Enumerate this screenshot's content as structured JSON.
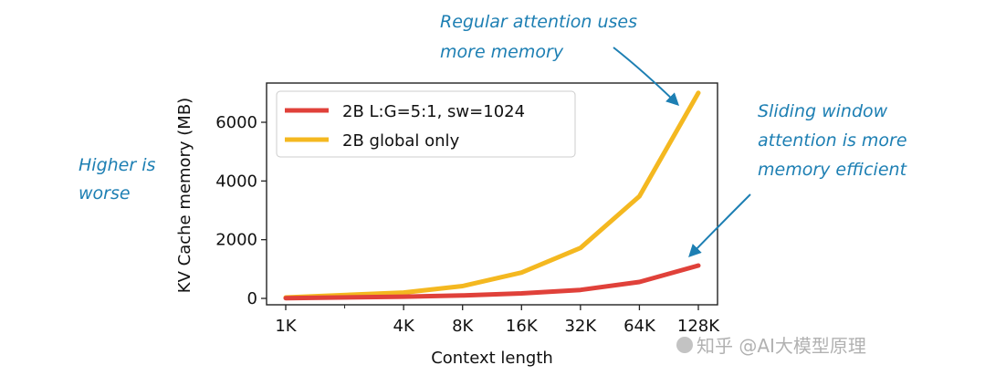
{
  "chart_data": {
    "type": "line",
    "x_scale": "log2",
    "x": [
      "1K",
      "4K",
      "8K",
      "16K",
      "32K",
      "64K",
      "128K"
    ],
    "xlabel": "Context length",
    "ylabel": "KV Cache memory (MB)",
    "y_ticks": [
      "0",
      "2000",
      "4000",
      "6000"
    ],
    "ylim": [
      -150,
      7350
    ],
    "grid": false,
    "legend_position": "top-left",
    "series": [
      {
        "name": "2B L:G=5:1, sw=1024",
        "color": "#e0413a",
        "values": [
          10,
          60,
          100,
          170,
          290,
          560,
          1120
        ]
      },
      {
        "name": "2B global only",
        "color": "#f4b820",
        "values": [
          30,
          200,
          420,
          880,
          1720,
          3480,
          7000
        ]
      }
    ]
  },
  "annotations": {
    "top": [
      "Regular attention uses",
      "more memory"
    ],
    "left": [
      "Higher is",
      "worse"
    ],
    "right": [
      "Sliding window",
      "attention is more",
      "memory efficient"
    ]
  },
  "watermark": "知乎 @AI大模型原理"
}
